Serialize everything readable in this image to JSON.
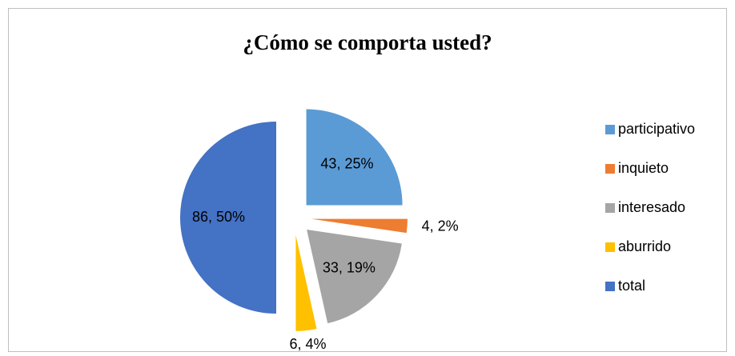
{
  "chart_data": {
    "type": "pie",
    "title": "¿Cómo se comporta usted?",
    "categories": [
      "participativo",
      "inquieto",
      "interesado",
      "aburrido",
      "total"
    ],
    "values": [
      43,
      4,
      33,
      6,
      86
    ],
    "value_labels": [
      "43, 25%",
      "4, 2%",
      "33, 19%",
      "6, 4%",
      "86, 50%"
    ],
    "colors": [
      "#5b9bd5",
      "#ed7d31",
      "#a5a5a5",
      "#ffc000",
      "#4472c4"
    ],
    "legend": "right"
  }
}
